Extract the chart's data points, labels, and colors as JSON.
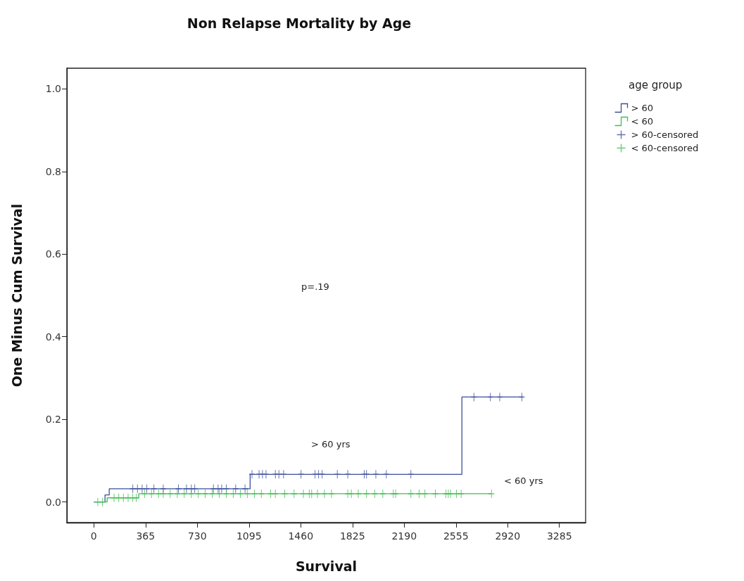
{
  "chart_data": {
    "type": "step",
    "title": "Non Relapse Mortality by Age",
    "xlabel": "Survival",
    "ylabel": "One Minus Cum Survival",
    "legend_title": "age group",
    "xlim": [
      -190,
      3470
    ],
    "xticks": [
      0,
      365,
      730,
      1095,
      1460,
      1825,
      2190,
      2555,
      2920,
      3285
    ],
    "ylim": [
      -0.05,
      1.05
    ],
    "yticks": [
      {
        "value": 0,
        "label": "0.0"
      },
      0.2,
      0.4,
      0.6,
      0.8,
      {
        "value": 1,
        "label": "1.0"
      }
    ],
    "grid": false,
    "legend": "top right",
    "line_style": "solid",
    "annotations": [
      "p=.19",
      "> 60 yrs",
      "< 60 yrs"
    ],
    "series": [
      {
        "name": "> 60",
        "type": "step",
        "color": "#3d4f9b",
        "x": [
          0,
          79,
          109,
          1103,
          2597,
          3027
        ],
        "values": [
          0,
          0.017,
          0.032,
          0.067,
          0.254,
          0.254
        ]
      },
      {
        "name": "< 60",
        "type": "step",
        "color": "#3fbf4f",
        "x": [
          0,
          94,
          317,
          2804
        ],
        "values": [
          0,
          0.01,
          0.02,
          0.02
        ]
      },
      {
        "name": "> 60-censored",
        "type": "scatter",
        "marker": "cross",
        "color": "#3d4f9b",
        "x": [
          275,
          308,
          341,
          374,
          424,
          490,
          597,
          654,
          688,
          712,
          844,
          877,
          902,
          935,
          1001,
          1067,
          1116,
          1166,
          1190,
          1215,
          1281,
          1306,
          1339,
          1462,
          1561,
          1586,
          1611,
          1718,
          1792,
          1908,
          1924,
          1990,
          2064,
          2237,
          2682,
          2798,
          2864,
          3020
        ],
        "values": [
          0.032,
          0.032,
          0.032,
          0.032,
          0.032,
          0.032,
          0.032,
          0.032,
          0.032,
          0.032,
          0.032,
          0.032,
          0.032,
          0.032,
          0.032,
          0.032,
          0.067,
          0.067,
          0.067,
          0.067,
          0.067,
          0.067,
          0.067,
          0.067,
          0.067,
          0.067,
          0.067,
          0.067,
          0.067,
          0.067,
          0.067,
          0.067,
          0.067,
          0.067,
          0.254,
          0.254,
          0.254,
          0.254
        ]
      },
      {
        "name": "< 60-censored",
        "type": "scatter",
        "marker": "cross",
        "color": "#3fbf4f",
        "x": [
          28,
          61,
          143,
          176,
          209,
          242,
          275,
          300,
          358,
          407,
          457,
          490,
          539,
          589,
          638,
          688,
          737,
          786,
          836,
          885,
          935,
          984,
          1034,
          1083,
          1133,
          1182,
          1248,
          1281,
          1347,
          1413,
          1479,
          1520,
          1537,
          1578,
          1627,
          1677,
          1792,
          1817,
          1866,
          1924,
          1982,
          2039,
          2113,
          2130,
          2237,
          2295,
          2336,
          2410,
          2484,
          2501,
          2517,
          2559,
          2592,
          2806
        ],
        "values": [
          0,
          0,
          0.01,
          0.01,
          0.01,
          0.01,
          0.01,
          0.01,
          0.02,
          0.02,
          0.02,
          0.02,
          0.02,
          0.02,
          0.02,
          0.02,
          0.02,
          0.02,
          0.02,
          0.02,
          0.02,
          0.02,
          0.02,
          0.02,
          0.02,
          0.02,
          0.02,
          0.02,
          0.02,
          0.02,
          0.02,
          0.02,
          0.02,
          0.02,
          0.02,
          0.02,
          0.02,
          0.02,
          0.02,
          0.02,
          0.02,
          0.02,
          0.02,
          0.02,
          0.02,
          0.02,
          0.02,
          0.02,
          0.02,
          0.02,
          0.02,
          0.02,
          0.02,
          0.02
        ]
      }
    ]
  }
}
